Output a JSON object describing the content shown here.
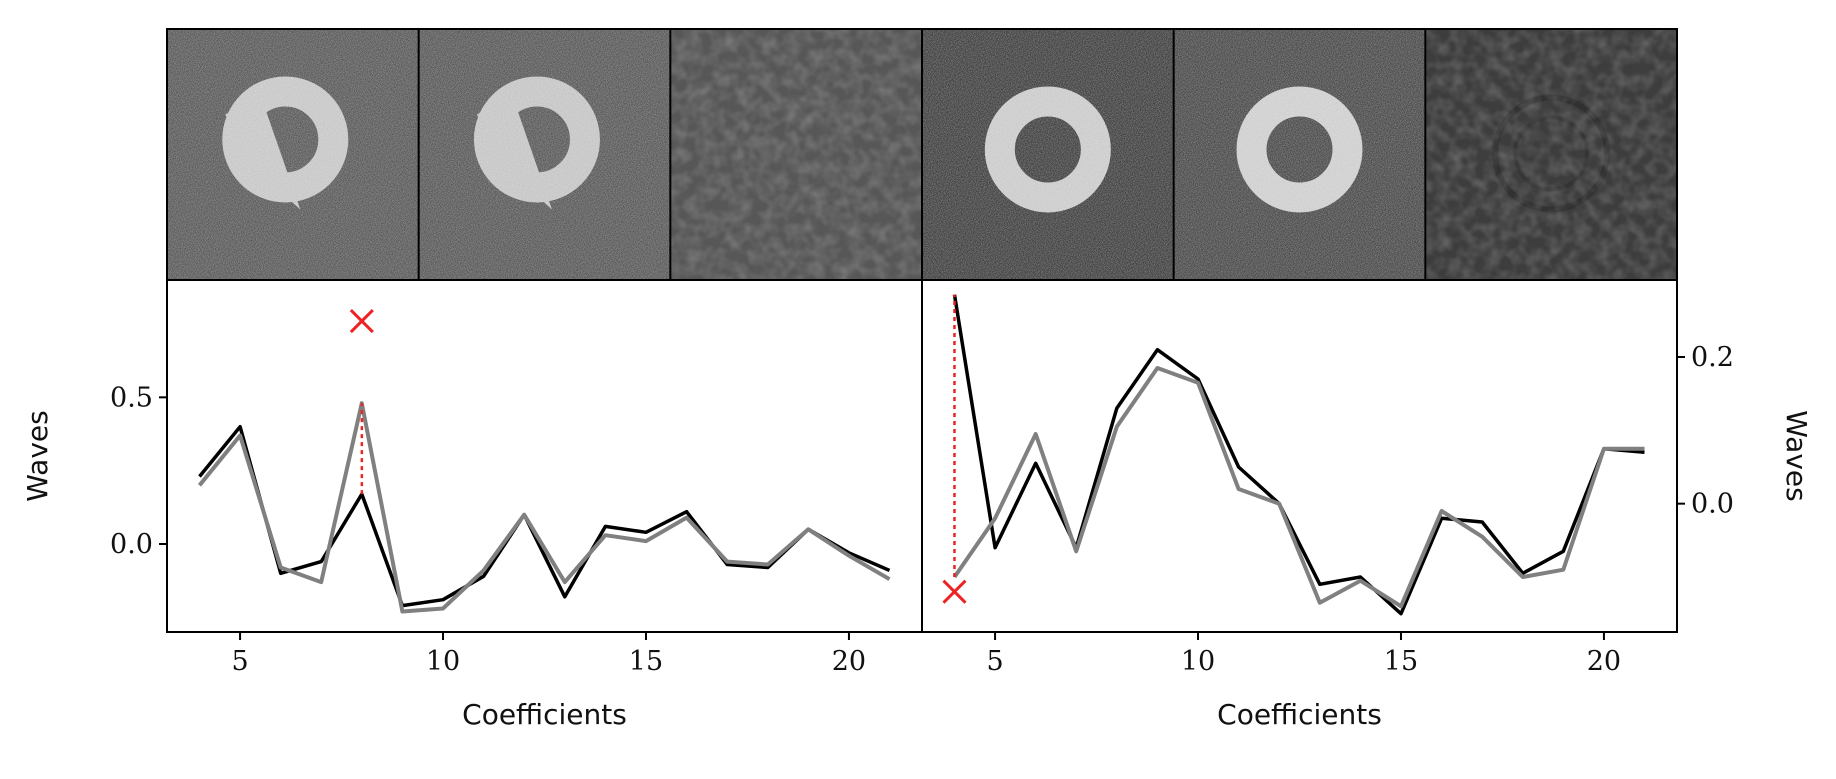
{
  "thumbnails": [
    {
      "kind": "ring",
      "bg": "#545454",
      "ring": "#c4c4c4",
      "noise": "high",
      "shape": "offset"
    },
    {
      "kind": "ring",
      "bg": "#535353",
      "ring": "#c2c2c2",
      "noise": "high",
      "shape": "offset"
    },
    {
      "kind": "residual",
      "bg": "#575757",
      "ring": "#5c5c5c",
      "noise": "low",
      "shape": "faint"
    },
    {
      "kind": "ring",
      "bg": "#3a3a3a",
      "ring": "#c8c8c8",
      "noise": "high",
      "shape": "round"
    },
    {
      "kind": "ring",
      "bg": "#444444",
      "ring": "#cccccc",
      "noise": "high",
      "shape": "round"
    },
    {
      "kind": "residual",
      "bg": "#3d3d3d",
      "ring": "#2e2e2e",
      "noise": "low",
      "shape": "faint"
    }
  ],
  "chart_data": [
    {
      "type": "line",
      "xlabel": "Coefficients",
      "ylabel": "Waves",
      "ylabel_side": "left",
      "xlim": [
        3.2,
        21.8
      ],
      "ylim": [
        -0.3,
        0.9
      ],
      "xticks": [
        5,
        10,
        15,
        20
      ],
      "yticks": [
        0.0,
        0.5
      ],
      "x": [
        4,
        5,
        6,
        7,
        8,
        9,
        10,
        11,
        12,
        13,
        14,
        15,
        16,
        17,
        18,
        19,
        20,
        21
      ],
      "series": [
        {
          "color": "#000000",
          "values": [
            0.23,
            0.4,
            -0.1,
            -0.06,
            0.17,
            -0.21,
            -0.19,
            -0.11,
            0.1,
            -0.18,
            0.06,
            0.04,
            0.11,
            -0.07,
            -0.08,
            0.05,
            -0.03,
            -0.09
          ]
        },
        {
          "color": "#808080",
          "values": [
            0.2,
            0.37,
            -0.08,
            -0.13,
            0.48,
            -0.23,
            -0.22,
            -0.09,
            0.1,
            -0.13,
            0.03,
            0.01,
            0.09,
            -0.06,
            -0.07,
            0.05,
            -0.04,
            -0.12
          ]
        }
      ],
      "marker": {
        "x": 8,
        "y": 0.76,
        "color": "#ee2222"
      },
      "dotted_line": {
        "x": 8,
        "y_from": 0.17,
        "y_to": 0.48,
        "color": "#ee2222"
      }
    },
    {
      "type": "line",
      "xlabel": "Coefficients",
      "ylabel": "Waves",
      "ylabel_side": "right",
      "xlim": [
        3.2,
        21.8
      ],
      "ylim": [
        -0.175,
        0.305
      ],
      "xticks": [
        5,
        10,
        15,
        20
      ],
      "yticks": [
        0.0,
        0.2
      ],
      "x": [
        4,
        5,
        6,
        7,
        8,
        9,
        10,
        11,
        12,
        13,
        14,
        15,
        16,
        17,
        18,
        19,
        20,
        21
      ],
      "series": [
        {
          "color": "#000000",
          "values": [
            0.285,
            -0.06,
            0.055,
            -0.06,
            0.13,
            0.21,
            0.17,
            0.05,
            0.0,
            -0.11,
            -0.1,
            -0.15,
            -0.02,
            -0.025,
            -0.095,
            -0.065,
            0.075,
            0.07
          ]
        },
        {
          "color": "#808080",
          "values": [
            -0.1,
            -0.02,
            0.095,
            -0.065,
            0.105,
            0.185,
            0.165,
            0.02,
            0.0,
            -0.135,
            -0.105,
            -0.14,
            -0.01,
            -0.045,
            -0.1,
            -0.09,
            0.075,
            0.075
          ]
        }
      ],
      "marker": {
        "x": 4,
        "y": -0.12,
        "color": "#ee2222"
      },
      "dotted_line": {
        "x": 4,
        "y_from": -0.1,
        "y_to": 0.285,
        "color": "#ee2222"
      }
    }
  ]
}
